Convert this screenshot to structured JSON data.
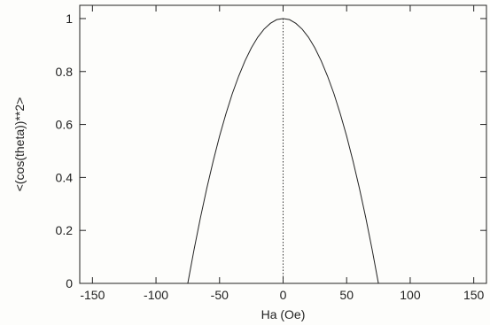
{
  "chart_data": {
    "type": "line",
    "title": "",
    "xlabel": "Ha (Oe)",
    "ylabel": "<(cos(theta))**2>",
    "xlim": [
      -160,
      160
    ],
    "ylim": [
      0,
      1.05
    ],
    "xticks": [
      -150,
      -100,
      -50,
      0,
      50,
      100,
      150
    ],
    "xtick_labels": [
      "-150",
      "-100",
      "-50",
      "0",
      "50",
      "100",
      "150"
    ],
    "yticks": [
      0,
      0.2,
      0.4,
      0.6,
      0.8,
      1
    ],
    "ytick_labels": [
      "0",
      "0.2",
      "0.4",
      "0.6",
      "0.8",
      "1"
    ],
    "grid": false,
    "legend": "none",
    "series": [
      {
        "x": [
          -75,
          -70,
          -65,
          -60,
          -55,
          -50,
          -45,
          -40,
          -35,
          -30,
          -25,
          -20,
          -15,
          -10,
          -5,
          0,
          5,
          10,
          15,
          20,
          25,
          30,
          35,
          40,
          45,
          50,
          55,
          60,
          65,
          70,
          75
        ],
        "y": [
          0,
          0.129,
          0.249,
          0.36,
          0.462,
          0.556,
          0.64,
          0.716,
          0.782,
          0.84,
          0.889,
          0.929,
          0.96,
          0.982,
          0.996,
          1,
          0.996,
          0.982,
          0.96,
          0.929,
          0.889,
          0.84,
          0.782,
          0.716,
          0.64,
          0.556,
          0.462,
          0.36,
          0.249,
          0.129,
          0
        ]
      }
    ],
    "reference_line": {
      "x": 0,
      "style": "dotted"
    }
  }
}
